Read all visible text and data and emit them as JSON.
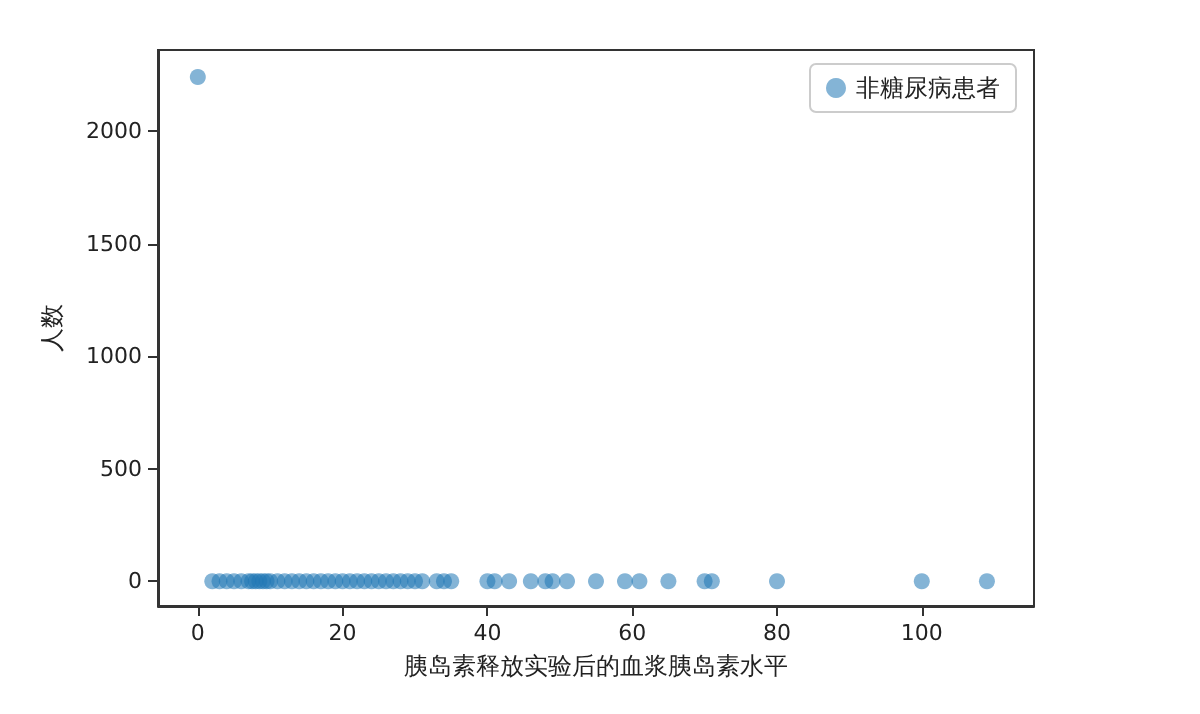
{
  "chart_data": {
    "type": "scatter",
    "xlabel": "胰岛素释放实验后的血浆胰岛素水平",
    "ylabel": "人数",
    "x": [
      0,
      2,
      3,
      4,
      5,
      6,
      7,
      7.5,
      8,
      8.5,
      9,
      9.5,
      10,
      11,
      12,
      13,
      14,
      15,
      16,
      17,
      18,
      19,
      20,
      21,
      22,
      23,
      24,
      25,
      26,
      27,
      28,
      29,
      30,
      31,
      33,
      34,
      35,
      40,
      41,
      43,
      46,
      48,
      49,
      51,
      55,
      59,
      61,
      65,
      70,
      71,
      80,
      100,
      109
    ],
    "series": [
      {
        "name": "非糖尿病患者",
        "color": "#1f77b4",
        "values": [
          2240,
          0,
          0,
          0,
          0,
          0,
          0,
          0,
          0,
          0,
          0,
          0,
          0,
          0,
          0,
          0,
          0,
          0,
          0,
          0,
          0,
          0,
          0,
          0,
          0,
          0,
          0,
          0,
          0,
          0,
          0,
          0,
          0,
          0,
          0,
          0,
          0,
          0,
          0,
          0,
          0,
          0,
          0,
          0,
          0,
          0,
          0,
          0,
          0,
          0,
          0,
          0,
          0
        ]
      }
    ],
    "xlim": [
      -5.5,
      115.5
    ],
    "xticks": [
      0,
      20,
      40,
      60,
      80,
      100
    ],
    "ylim": [
      -110,
      2360
    ],
    "yticks": [
      0,
      500,
      1000,
      1500,
      2000
    ],
    "marker": "circle",
    "legend": "top right",
    "grid": false
  }
}
